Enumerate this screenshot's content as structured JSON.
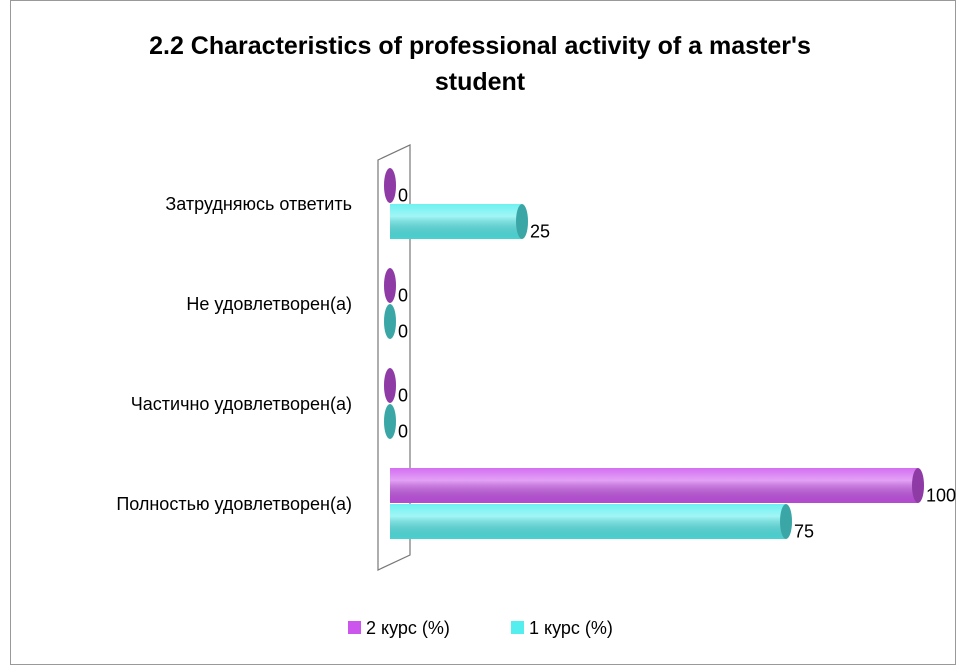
{
  "chart_data": {
    "type": "bar",
    "orientation": "horizontal",
    "title": "2.2 Characteristics of professional activity of a master's student",
    "categories": [
      "Затрудняюсь ответить",
      "Не удовлетворен(а)",
      "Частично удовлетворен(а)",
      "Полностью удовлетворен(а)"
    ],
    "series": [
      {
        "name": "2 курс (%)",
        "color": "#cc55ee",
        "values": [
          0,
          0,
          0,
          100
        ]
      },
      {
        "name": "1 курс (%)",
        "color": "#55eeee",
        "values": [
          25,
          0,
          0,
          75
        ]
      }
    ],
    "xlim": [
      0,
      100
    ],
    "legend": "bottom"
  }
}
